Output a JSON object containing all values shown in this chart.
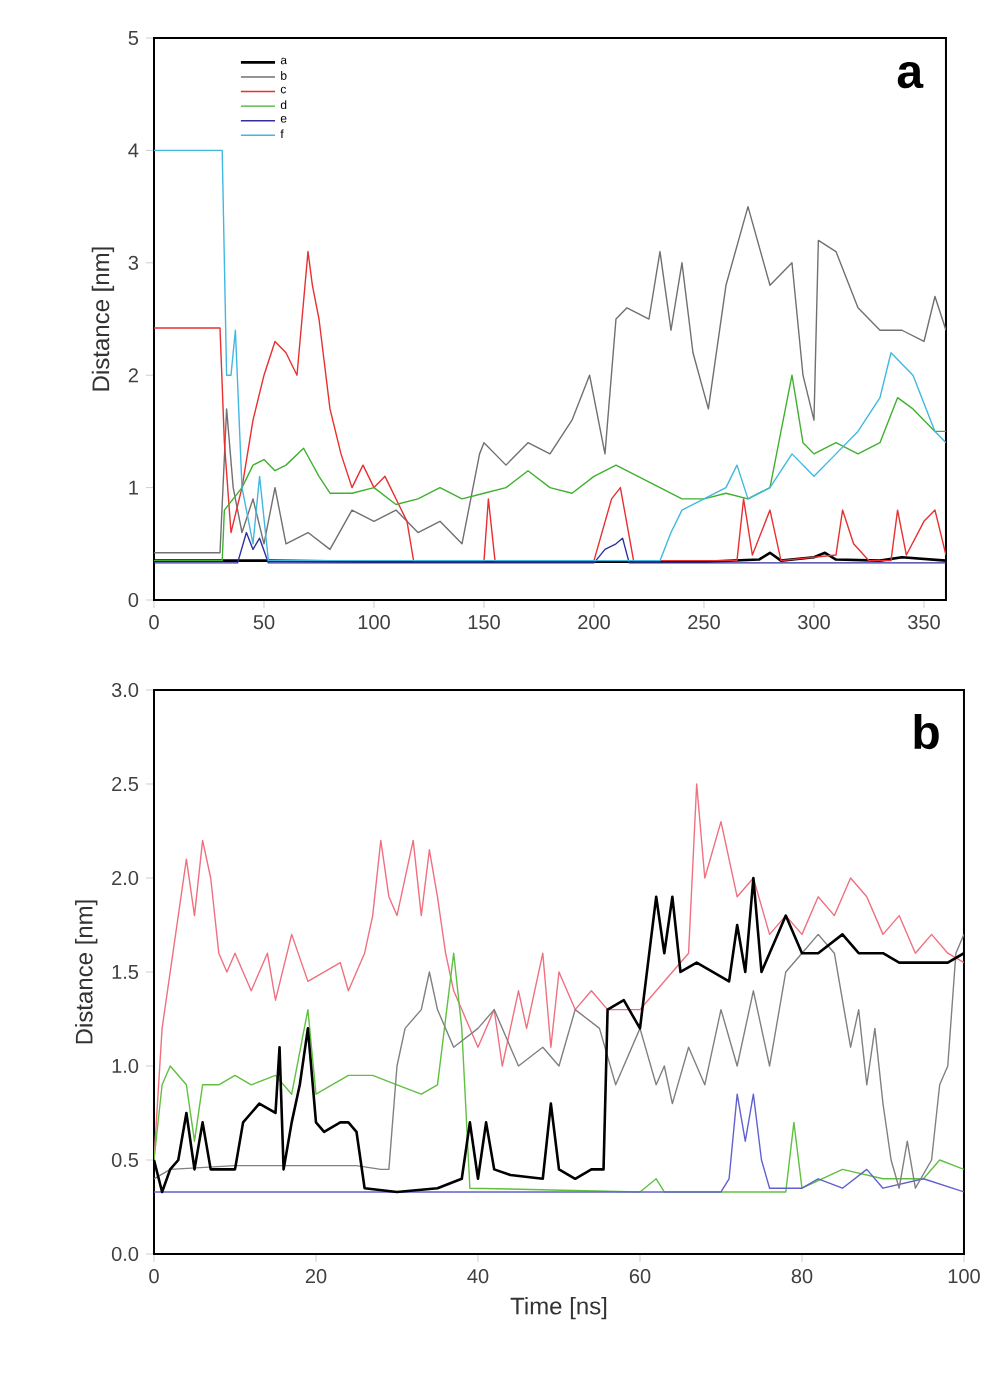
{
  "chart_data": [
    {
      "type": "line",
      "title": "a",
      "ylabel": "Distance [nm]",
      "xlim": [
        0,
        360
      ],
      "ylim": [
        0,
        5
      ],
      "xticks": [
        0,
        50,
        100,
        150,
        200,
        250,
        300,
        350
      ],
      "yticks": [
        0,
        1,
        2,
        3,
        4,
        5
      ],
      "legend": "top left",
      "series": [
        {
          "name": "a",
          "color": "#000000",
          "x": [
            0,
            50,
            100,
            150,
            200,
            250,
            275,
            280,
            285,
            300,
            305,
            310,
            330,
            340,
            360
          ],
          "values": [
            0.35,
            0.35,
            0.34,
            0.34,
            0.34,
            0.34,
            0.36,
            0.42,
            0.35,
            0.38,
            0.42,
            0.36,
            0.35,
            0.38,
            0.35
          ]
        },
        {
          "name": "b",
          "color": "#707070",
          "x": [
            0,
            30,
            33,
            36,
            40,
            45,
            50,
            55,
            60,
            70,
            80,
            90,
            100,
            110,
            120,
            130,
            140,
            148,
            150,
            160,
            170,
            180,
            190,
            198,
            205,
            210,
            215,
            225,
            230,
            235,
            240,
            245,
            252,
            260,
            270,
            280,
            290,
            295,
            300,
            302,
            310,
            320,
            330,
            340,
            350,
            355,
            360
          ],
          "values": [
            0.42,
            0.42,
            1.7,
            1.0,
            0.6,
            0.9,
            0.5,
            1.0,
            0.5,
            0.6,
            0.45,
            0.8,
            0.7,
            0.8,
            0.6,
            0.7,
            0.5,
            1.3,
            1.4,
            1.2,
            1.4,
            1.3,
            1.6,
            2.0,
            1.3,
            2.5,
            2.6,
            2.5,
            3.1,
            2.4,
            3.0,
            2.2,
            1.7,
            2.8,
            3.5,
            2.8,
            3.0,
            2.0,
            1.6,
            3.2,
            3.1,
            2.6,
            2.4,
            2.4,
            2.3,
            2.7,
            2.4
          ]
        },
        {
          "name": "c",
          "color": "#e83030",
          "x": [
            0,
            30,
            32,
            35,
            40,
            45,
            50,
            55,
            60,
            65,
            70,
            72,
            75,
            80,
            85,
            90,
            95,
            100,
            105,
            110,
            115,
            118,
            150,
            152,
            155,
            200,
            208,
            212,
            218,
            265,
            268,
            272,
            280,
            285,
            310,
            313,
            318,
            325,
            335,
            338,
            342,
            350,
            355,
            360
          ],
          "values": [
            2.42,
            2.42,
            1.4,
            0.6,
            1.0,
            1.6,
            2.0,
            2.3,
            2.2,
            2.0,
            3.1,
            2.8,
            2.5,
            1.7,
            1.3,
            1.0,
            1.2,
            1.0,
            1.1,
            0.9,
            0.7,
            0.35,
            0.35,
            0.9,
            0.35,
            0.35,
            0.9,
            1.0,
            0.35,
            0.35,
            0.9,
            0.4,
            0.8,
            0.35,
            0.4,
            0.8,
            0.5,
            0.35,
            0.35,
            0.8,
            0.4,
            0.7,
            0.8,
            0.4
          ]
        },
        {
          "name": "d",
          "color": "#40b030",
          "x": [
            0,
            31,
            32,
            40,
            45,
            50,
            55,
            60,
            68,
            75,
            80,
            90,
            100,
            110,
            120,
            130,
            140,
            150,
            160,
            170,
            180,
            190,
            200,
            210,
            220,
            230,
            240,
            250,
            260,
            270,
            280,
            285,
            290,
            295,
            300,
            310,
            320,
            330,
            338,
            345,
            355,
            360
          ],
          "values": [
            0.35,
            0.35,
            0.8,
            1.0,
            1.2,
            1.25,
            1.15,
            1.2,
            1.35,
            1.1,
            0.95,
            0.95,
            1.0,
            0.85,
            0.9,
            1.0,
            0.9,
            0.95,
            1.0,
            1.15,
            1.0,
            0.95,
            1.1,
            1.2,
            1.1,
            1.0,
            0.9,
            0.9,
            0.95,
            0.9,
            1.0,
            1.5,
            2.0,
            1.4,
            1.3,
            1.4,
            1.3,
            1.4,
            1.8,
            1.7,
            1.5,
            1.5
          ]
        },
        {
          "name": "e",
          "color": "#3030a0",
          "x": [
            0,
            38,
            42,
            45,
            48,
            52,
            200,
            205,
            210,
            213,
            216,
            360
          ],
          "values": [
            0.33,
            0.33,
            0.6,
            0.45,
            0.55,
            0.33,
            0.33,
            0.45,
            0.5,
            0.55,
            0.33,
            0.33
          ]
        },
        {
          "name": "f",
          "color": "#40b8e0",
          "x": [
            0,
            31,
            33,
            35,
            37,
            40,
            45,
            48,
            52,
            230,
            235,
            240,
            250,
            260,
            265,
            270,
            280,
            290,
            300,
            310,
            320,
            330,
            335,
            345,
            355,
            360
          ],
          "values": [
            4.0,
            4.0,
            2.0,
            2.0,
            2.4,
            1.0,
            0.5,
            1.1,
            0.35,
            0.35,
            0.6,
            0.8,
            0.9,
            1.0,
            1.2,
            0.9,
            1.0,
            1.3,
            1.1,
            1.3,
            1.5,
            1.8,
            2.2,
            2.0,
            1.5,
            1.4
          ]
        }
      ]
    },
    {
      "type": "line",
      "title": "b",
      "ylabel": "Distance [nm]",
      "xlabel": "Time [ns]",
      "xlim": [
        0,
        100
      ],
      "ylim": [
        0,
        3
      ],
      "xticks": [
        0,
        20,
        40,
        60,
        80,
        100
      ],
      "yticks": [
        {
          "value": 0,
          "label": "0.0"
        },
        {
          "value": 0.5,
          "label": "0.5"
        },
        {
          "value": 1,
          "label": "1.0"
        },
        {
          "value": 1.5,
          "label": "1.5"
        },
        {
          "value": 2,
          "label": "2.0"
        },
        {
          "value": 2.5,
          "label": "2.5"
        },
        {
          "value": 3,
          "label": "3.0"
        }
      ],
      "series": [
        {
          "color": "#f07080",
          "x": [
            0,
            1,
            2,
            3,
            4,
            5,
            6,
            7,
            8,
            9,
            10,
            12,
            14,
            15,
            17,
            19,
            21,
            23,
            24,
            26,
            27,
            28,
            29,
            30,
            32,
            33,
            34,
            35,
            36,
            37,
            38,
            40,
            42,
            43,
            45,
            46,
            48,
            49,
            50,
            52,
            54,
            56,
            58,
            60,
            62,
            64,
            66,
            67,
            68,
            70,
            72,
            74,
            76,
            78,
            80,
            82,
            84,
            86,
            88,
            90,
            92,
            94,
            96,
            98,
            100
          ],
          "values": [
            0.5,
            1.2,
            1.5,
            1.8,
            2.1,
            1.8,
            2.2,
            2.0,
            1.6,
            1.5,
            1.6,
            1.4,
            1.6,
            1.35,
            1.7,
            1.45,
            1.5,
            1.55,
            1.4,
            1.6,
            1.8,
            2.2,
            1.9,
            1.8,
            2.2,
            1.8,
            2.15,
            1.9,
            1.6,
            1.4,
            1.3,
            1.1,
            1.3,
            1.0,
            1.4,
            1.2,
            1.6,
            1.1,
            1.5,
            1.3,
            1.4,
            1.3,
            1.3,
            1.3,
            1.4,
            1.5,
            1.6,
            2.5,
            2.0,
            2.3,
            1.9,
            2.0,
            1.7,
            1.8,
            1.7,
            1.9,
            1.8,
            2.0,
            1.9,
            1.7,
            1.8,
            1.6,
            1.7,
            1.6,
            1.55
          ]
        },
        {
          "color": "#60c040",
          "x": [
            0,
            1,
            2,
            4,
            5,
            6,
            8,
            10,
            12,
            15,
            17,
            19,
            20,
            24,
            27,
            30,
            33,
            35,
            37,
            38,
            39,
            60,
            62,
            63,
            78,
            79,
            80,
            85,
            90,
            95,
            97,
            100
          ],
          "values": [
            0.5,
            0.9,
            1.0,
            0.9,
            0.6,
            0.9,
            0.9,
            0.95,
            0.9,
            0.95,
            0.85,
            1.3,
            0.85,
            0.95,
            0.95,
            0.9,
            0.85,
            0.9,
            1.6,
            1.2,
            0.35,
            0.33,
            0.4,
            0.33,
            0.33,
            0.7,
            0.35,
            0.45,
            0.4,
            0.4,
            0.5,
            0.45
          ]
        },
        {
          "color": "#6060d0",
          "x": [
            0,
            40,
            70,
            71,
            72,
            73,
            74,
            75,
            76,
            80,
            82,
            85,
            88,
            90,
            95,
            100
          ],
          "values": [
            0.33,
            0.33,
            0.33,
            0.4,
            0.85,
            0.6,
            0.85,
            0.5,
            0.35,
            0.35,
            0.4,
            0.35,
            0.45,
            0.35,
            0.4,
            0.33
          ]
        },
        {
          "color": "#808080",
          "x": [
            0,
            2,
            10,
            20,
            25,
            28,
            29,
            30,
            31,
            33,
            34,
            35,
            37,
            40,
            42,
            45,
            48,
            50,
            52,
            55,
            57,
            60,
            62,
            63,
            64,
            66,
            68,
            70,
            72,
            74,
            76,
            78,
            80,
            82,
            84,
            86,
            87,
            88,
            89,
            90,
            91,
            92,
            93,
            94,
            96,
            97,
            98,
            99,
            100
          ],
          "values": [
            0.4,
            0.45,
            0.47,
            0.47,
            0.47,
            0.45,
            0.45,
            1.0,
            1.2,
            1.3,
            1.5,
            1.3,
            1.1,
            1.2,
            1.3,
            1.0,
            1.1,
            1.0,
            1.3,
            1.2,
            0.9,
            1.2,
            0.9,
            1.0,
            0.8,
            1.1,
            0.9,
            1.3,
            1.0,
            1.4,
            1.0,
            1.5,
            1.6,
            1.7,
            1.6,
            1.1,
            1.3,
            0.9,
            1.2,
            0.8,
            0.5,
            0.35,
            0.6,
            0.35,
            0.5,
            0.9,
            1.0,
            1.6,
            1.7
          ]
        },
        {
          "color": "#000000",
          "x": [
            0,
            1,
            2,
            3,
            4,
            5,
            6,
            7,
            10,
            11,
            12,
            13,
            15,
            15.5,
            16,
            17,
            18,
            19,
            20,
            21,
            23,
            24,
            25,
            26,
            30,
            35,
            38,
            39,
            40,
            41,
            42,
            44,
            48,
            49,
            50,
            52,
            54,
            55.5,
            56,
            58,
            60,
            61,
            62,
            63,
            64,
            65,
            67,
            69,
            71,
            72,
            73,
            74,
            75,
            77,
            78,
            80,
            82,
            85,
            87,
            90,
            92,
            95,
            98,
            100
          ],
          "values": [
            0.5,
            0.33,
            0.45,
            0.5,
            0.75,
            0.45,
            0.7,
            0.45,
            0.45,
            0.7,
            0.75,
            0.8,
            0.75,
            1.1,
            0.45,
            0.7,
            0.9,
            1.2,
            0.7,
            0.65,
            0.7,
            0.7,
            0.65,
            0.35,
            0.33,
            0.35,
            0.4,
            0.7,
            0.4,
            0.7,
            0.45,
            0.42,
            0.4,
            0.8,
            0.45,
            0.4,
            0.45,
            0.45,
            1.3,
            1.35,
            1.2,
            1.55,
            1.9,
            1.6,
            1.9,
            1.5,
            1.55,
            1.5,
            1.45,
            1.75,
            1.5,
            2.0,
            1.5,
            1.7,
            1.8,
            1.6,
            1.6,
            1.7,
            1.6,
            1.6,
            1.55,
            1.55,
            1.55,
            1.6
          ]
        }
      ]
    }
  ]
}
